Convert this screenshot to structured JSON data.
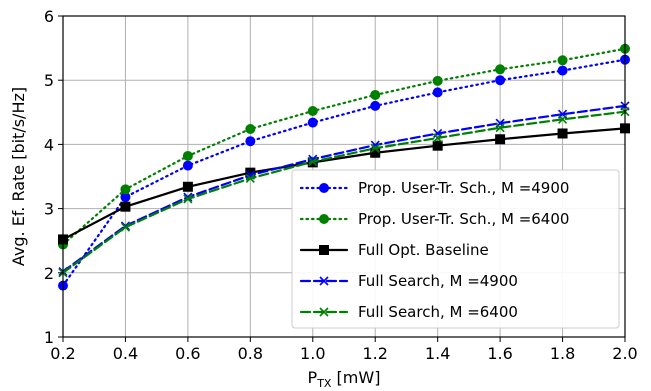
{
  "chart_data": {
    "type": "line",
    "xlabel_main": "P",
    "xlabel_sub": "TX",
    "xlabel_unit": " [mW]",
    "ylabel": "Avg. Ef. Rate [bit/s/Hz]",
    "xlim": [
      0.2,
      2.0
    ],
    "ylim": [
      1,
      6
    ],
    "x_ticks": [
      "0.2",
      "0.4",
      "0.6",
      "0.8",
      "1.0",
      "1.2",
      "1.4",
      "1.6",
      "1.8",
      "2.0"
    ],
    "y_ticks": [
      "1",
      "2",
      "3",
      "4",
      "5",
      "6"
    ],
    "grid": true,
    "legend_position": "lower-right",
    "x": [
      0.2,
      0.4,
      0.6,
      0.8,
      1.0,
      1.2,
      1.4,
      1.6,
      1.8,
      2.0
    ],
    "series": [
      {
        "name": "Prop. User-Tr. Sch., M =4900",
        "color": "#0000ff",
        "linestyle": "dotted",
        "marker": "circle",
        "values": [
          1.8,
          3.18,
          3.67,
          4.05,
          4.34,
          4.6,
          4.81,
          5.0,
          5.15,
          5.32
        ]
      },
      {
        "name": "Prop. User-Tr. Sch., M =6400",
        "color": "#008000",
        "linestyle": "dotted",
        "marker": "circle",
        "values": [
          2.44,
          3.3,
          3.82,
          4.24,
          4.52,
          4.77,
          4.99,
          5.17,
          5.31,
          5.49
        ]
      },
      {
        "name": "Full Opt. Baseline",
        "color": "#000000",
        "linestyle": "solid",
        "marker": "square",
        "values": [
          2.52,
          3.03,
          3.34,
          3.56,
          3.72,
          3.87,
          3.98,
          4.08,
          4.17,
          4.25
        ]
      },
      {
        "name": "Full Search, M =4900",
        "color": "#0000ff",
        "linestyle": "dashed",
        "marker": "x",
        "values": [
          2.02,
          2.73,
          3.18,
          3.52,
          3.77,
          3.99,
          4.17,
          4.33,
          4.47,
          4.6
        ]
      },
      {
        "name": "Full Search, M =6400",
        "color": "#008000",
        "linestyle": "dashed",
        "marker": "x",
        "values": [
          2.0,
          2.71,
          3.15,
          3.47,
          3.73,
          3.94,
          4.1,
          4.26,
          4.39,
          4.51
        ]
      }
    ]
  }
}
